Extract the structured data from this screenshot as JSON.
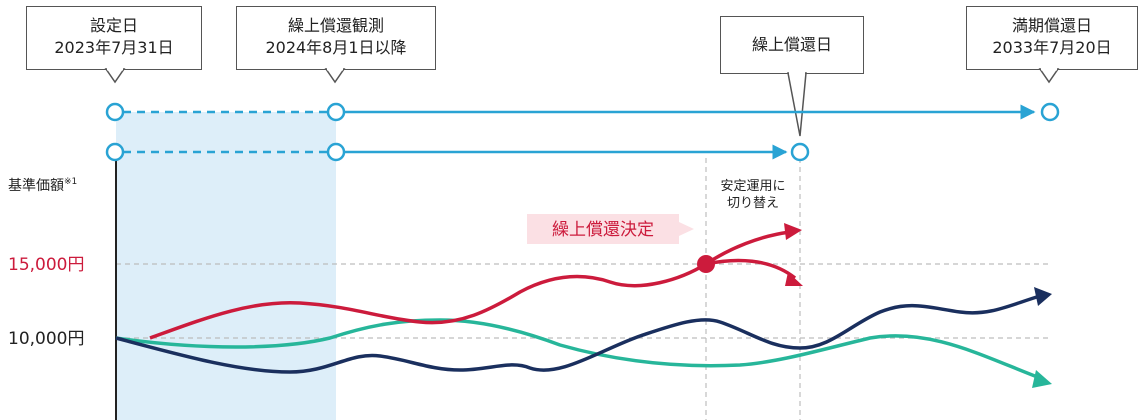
{
  "callouts": {
    "setting_date": {
      "line1": "設定日",
      "line2": "2023年7月31日"
    },
    "observation": {
      "line1": "繰上償還観測",
      "line2": "2024年8月1日以降"
    },
    "early_redemption": {
      "line1": "繰上償還日"
    },
    "maturity": {
      "line1": "満期償還日",
      "line2": "2033年7月20日"
    }
  },
  "axis": {
    "label": "基準価額",
    "label_superscript": "※1",
    "tick_15000": "15,000円",
    "tick_10000": "10,000円"
  },
  "annotations": {
    "switch_note_line1": "安定運用に",
    "switch_note_line2": "切り替え",
    "decision_label": "繰上償還決定"
  },
  "colors": {
    "timeline": "#29a3d4",
    "observation_shade": "#ddeef9",
    "red_series": "#cc1b3c",
    "navy_series": "#1a2f5e",
    "green_series": "#27b69a",
    "tick_15000": "#cc1b3c",
    "tick_10000": "#222222",
    "decision_bg": "#fbe0e4"
  }
}
